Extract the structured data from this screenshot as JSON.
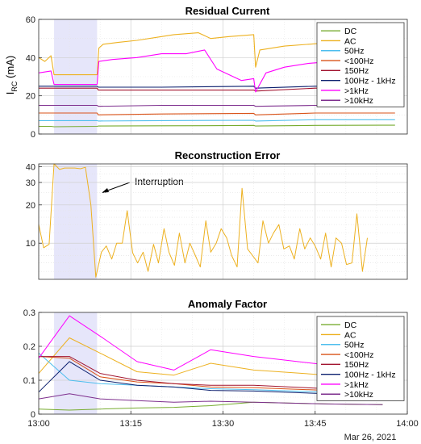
{
  "chart_data": [
    {
      "type": "line",
      "title": "Residual Current",
      "ylabel_main": "I",
      "ylabel_sub": "RC",
      "ylabel_unit": " (mA)",
      "ylim": [
        0,
        60
      ],
      "yticks": [
        "0",
        "20",
        "40",
        "60"
      ],
      "ytick_values": [
        0,
        20,
        40,
        60
      ],
      "xlim": [
        0,
        60
      ],
      "grid": true,
      "shaded_interval": [
        2.5,
        9.5
      ],
      "legend": "top-right",
      "series": [
        {
          "name": "DC",
          "color": "#77ac30",
          "x": [
            0,
            2,
            2.5,
            9.5,
            9.7,
            20,
            30,
            35,
            35.3,
            45,
            56,
            58
          ],
          "y": [
            4,
            4,
            3.8,
            4,
            4.2,
            4.3,
            4.4,
            4.5,
            4.2,
            4.5,
            4.6,
            4.6
          ]
        },
        {
          "name": "AC",
          "color": "#edb120",
          "x": [
            0,
            1,
            2,
            2.5,
            5,
            8,
            9.5,
            9.8,
            10.5,
            13,
            16,
            20,
            22,
            26,
            28,
            31,
            35,
            35.3,
            36,
            40,
            44,
            48,
            50,
            52,
            56,
            58
          ],
          "y": [
            40,
            38,
            41,
            31,
            31,
            31,
            31,
            45,
            47,
            48,
            49,
            51,
            52,
            53,
            50,
            51,
            52,
            35,
            44,
            46,
            47,
            48,
            49,
            50,
            51,
            51
          ]
        },
        {
          "name": "50Hz",
          "color": "#4dbeee",
          "x": [
            0,
            9.5,
            9.7,
            20,
            35,
            35.3,
            45,
            58
          ],
          "y": [
            7,
            7,
            6.8,
            7,
            7.2,
            6.8,
            7.5,
            7.5
          ]
        },
        {
          "name": "<100Hz",
          "color": "#d95319",
          "x": [
            0,
            9.5,
            9.7,
            20,
            35,
            35.3,
            45,
            58
          ],
          "y": [
            11,
            11,
            10,
            10.5,
            10.8,
            10,
            11,
            11
          ]
        },
        {
          "name": "150Hz",
          "color": "#a2142f",
          "x": [
            0,
            9.5,
            9.7,
            20,
            35,
            35.3,
            45,
            58
          ],
          "y": [
            24,
            24,
            23,
            23,
            23,
            22.5,
            24,
            24
          ]
        },
        {
          "name": "100Hz - 1kHz",
          "color": "#0b1f6e",
          "x": [
            0,
            9.5,
            9.7,
            20,
            35,
            35.3,
            45,
            58
          ],
          "y": [
            25,
            25,
            24.5,
            24.5,
            25,
            24,
            25,
            25
          ]
        },
        {
          "name": ">1kHz",
          "color": "#ff00ff",
          "x": [
            0,
            2,
            2.5,
            9.5,
            9.8,
            12,
            16,
            20,
            24,
            27,
            29,
            33,
            35,
            35.3,
            37,
            40,
            44,
            48,
            52,
            54,
            58
          ],
          "y": [
            32,
            33,
            26,
            26,
            38,
            39,
            40,
            42,
            42,
            44,
            34,
            28,
            29,
            22,
            32,
            35,
            37,
            38,
            40,
            42,
            41
          ]
        },
        {
          "name": ">10kHz",
          "color": "#7e2f8e",
          "x": [
            0,
            9.5,
            9.7,
            20,
            35,
            35.3,
            45,
            58
          ],
          "y": [
            15,
            15,
            14.5,
            15,
            15,
            14.5,
            15,
            15
          ]
        }
      ]
    },
    {
      "type": "line",
      "title": "Reconstruction Error",
      "yscale": "log",
      "ylim": [
        5.2,
        42
      ],
      "yticks": [
        "10",
        "20",
        "30",
        "40"
      ],
      "ytick_values": [
        10,
        20,
        30,
        40
      ],
      "xlim": [
        0,
        60
      ],
      "grid": true,
      "shaded_interval": [
        2.5,
        9.5
      ],
      "annotation": {
        "text": "Interruption"
      },
      "series": [
        {
          "name": "",
          "color": "#edb120",
          "x": [
            0,
            0.8,
            1.7,
            2.5,
            3.4,
            4.2,
            5.1,
            5.9,
            6.8,
            7.6,
            8.5,
            9.3,
            10.2,
            11.0,
            11.9,
            12.7,
            13.6,
            14.4,
            15.3,
            16.1,
            17.0,
            17.8,
            18.7,
            19.5,
            20.4,
            21.2,
            22.1,
            22.9,
            23.8,
            24.6,
            25.5,
            26.3,
            27.2,
            28.0,
            28.9,
            29.7,
            30.6,
            31.4,
            32.3,
            33.1,
            34.0,
            34.8,
            35.7,
            36.5,
            37.4,
            38.2,
            39.1,
            39.9,
            40.8,
            41.6,
            42.5,
            43.3,
            44.2,
            45.0,
            45.9,
            46.7,
            47.6,
            48.4,
            49.3,
            50.1,
            51.0,
            51.8,
            52.7,
            53.5
          ],
          "y": [
            14,
            9.2,
            9.8,
            42,
            38,
            39,
            39,
            39,
            38.5,
            39.5,
            20,
            5.4,
            8.5,
            9.5,
            7.5,
            10,
            10,
            18,
            8.4,
            7.0,
            8.5,
            6.0,
            9.8,
            7.0,
            13,
            8.5,
            6.7,
            12,
            7.0,
            10,
            8.0,
            6.5,
            15,
            8.5,
            10,
            13,
            11,
            8.0,
            6.5,
            27,
            9.0,
            8.0,
            7.0,
            15,
            10,
            12,
            14,
            9.0,
            9.5,
            7.5,
            13,
            9.0,
            11,
            9.5,
            7.5,
            12,
            6.5,
            11,
            10,
            6.8,
            7.0,
            17,
            6.0,
            11
          ]
        }
      ]
    },
    {
      "type": "line",
      "title": "Anomaly Factor",
      "ylim": [
        0,
        0.3
      ],
      "yticks": [
        "0",
        "0.1",
        "0.2",
        "0.3"
      ],
      "ytick_values": [
        0,
        0.1,
        0.2,
        0.3
      ],
      "xlim": [
        0,
        60
      ],
      "xticks": [
        "13:00",
        "13:15",
        "13:30",
        "13:45",
        "14:00"
      ],
      "xtick_values": [
        0,
        15,
        30,
        45,
        60
      ],
      "date_label": "Mar 26, 2021",
      "grid": true,
      "shaded_interval": [
        2.5,
        9.5
      ],
      "legend": "top-right",
      "series": [
        {
          "name": "DC",
          "color": "#77ac30",
          "x": [
            0,
            5,
            10,
            16,
            22,
            28,
            35,
            47,
            56
          ],
          "y": [
            0.015,
            0.012,
            0.015,
            0.018,
            0.02,
            0.025,
            0.035,
            0.03,
            0.028
          ]
        },
        {
          "name": "AC",
          "color": "#edb120",
          "x": [
            0,
            5,
            10,
            16,
            22,
            28,
            35,
            47,
            56
          ],
          "y": [
            0.12,
            0.225,
            0.18,
            0.125,
            0.115,
            0.15,
            0.13,
            0.115,
            0.105
          ]
        },
        {
          "name": "50Hz",
          "color": "#4dbeee",
          "x": [
            0,
            5,
            10,
            16,
            22,
            28,
            35,
            47,
            56
          ],
          "y": [
            0.18,
            0.1,
            0.09,
            0.085,
            0.08,
            0.075,
            0.072,
            0.065,
            0.06
          ]
        },
        {
          "name": "<100Hz",
          "color": "#d95319",
          "x": [
            0,
            5,
            10,
            16,
            22,
            28,
            35,
            47,
            56
          ],
          "y": [
            0.17,
            0.165,
            0.11,
            0.095,
            0.09,
            0.08,
            0.078,
            0.07,
            0.065
          ]
        },
        {
          "name": "150Hz",
          "color": "#a2142f",
          "x": [
            0,
            5,
            10,
            16,
            22,
            28,
            35,
            47,
            56
          ],
          "y": [
            0.17,
            0.17,
            0.12,
            0.1,
            0.09,
            0.085,
            0.085,
            0.075,
            0.07
          ]
        },
        {
          "name": "100Hz - 1kHz",
          "color": "#0b1f6e",
          "x": [
            0,
            5,
            10,
            16,
            22,
            28,
            35,
            47,
            56
          ],
          "y": [
            0.065,
            0.155,
            0.1,
            0.085,
            0.08,
            0.07,
            0.068,
            0.06,
            0.055
          ]
        },
        {
          "name": ">1kHz",
          "color": "#ff00ff",
          "x": [
            0,
            5,
            10,
            16,
            22,
            28,
            35,
            47,
            56
          ],
          "y": [
            0.165,
            0.29,
            0.23,
            0.155,
            0.13,
            0.19,
            0.17,
            0.145,
            0.135
          ]
        },
        {
          "name": ">10kHz",
          "color": "#7e2f8e",
          "x": [
            0,
            5,
            10,
            16,
            22,
            28,
            35,
            47,
            56
          ],
          "y": [
            0.045,
            0.06,
            0.045,
            0.04,
            0.035,
            0.038,
            0.035,
            0.03,
            0.028
          ]
        }
      ]
    }
  ]
}
